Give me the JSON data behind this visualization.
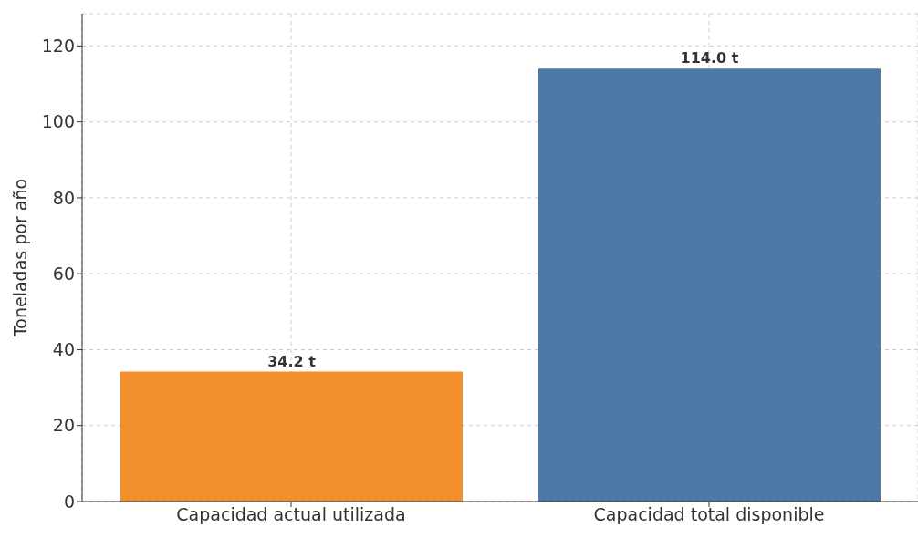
{
  "chart_data": {
    "type": "bar",
    "ylabel": "Toneladas por año",
    "categories": [
      "Capacidad actual utilizada",
      "Capacidad total disponible"
    ],
    "values": [
      34.2,
      114.0
    ],
    "colors": [
      "#f28e2b",
      "#4e79a7"
    ],
    "value_labels": [
      "34.2 t",
      "114.0 t"
    ],
    "ylim": [
      0,
      128.5
    ],
    "yticks": [
      0,
      20,
      40,
      60,
      80,
      100,
      120
    ],
    "grid": true
  }
}
